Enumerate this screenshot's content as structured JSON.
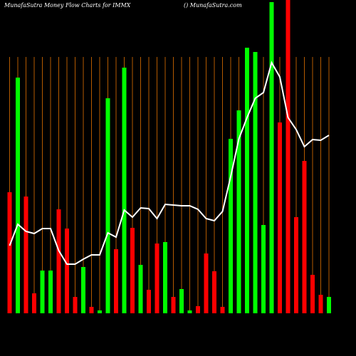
{
  "chart_data": {
    "type": "bar-line",
    "title": "MunafaSutra  Money Flow  Charts for IMMX",
    "subtitle": "() MunafaSutra.com",
    "ylim": [
      0,
      440
    ],
    "grid": true,
    "grid_color": "#b35a00",
    "bars": {
      "values": [
        170,
        331,
        164,
        28,
        60,
        60,
        146,
        119,
        23,
        65,
        9,
        4,
        302,
        90,
        345,
        120,
        68,
        33,
        98,
        100,
        23,
        34,
        4,
        10,
        84,
        59,
        9,
        245,
        285,
        373,
        367,
        124,
        437,
        268,
        440,
        135,
        214,
        54,
        26,
        23
      ],
      "colors": [
        "#ff0000",
        "#00ff00",
        "#ff0000",
        "#ff0000",
        "#00ff00",
        "#00ff00",
        "#ff0000",
        "#ff0000",
        "#ff0000",
        "#00ff00",
        "#ff0000",
        "#00ff00",
        "#00ff00",
        "#ff0000",
        "#00ff00",
        "#ff0000",
        "#00ff00",
        "#ff0000",
        "#ff0000",
        "#00ff00",
        "#ff0000",
        "#00ff00",
        "#00ff00",
        "#ff0000",
        "#ff0000",
        "#ff0000",
        "#ff0000",
        "#00ff00",
        "#00ff00",
        "#00ff00",
        "#00ff00",
        "#00ff00",
        "#00ff00",
        "#ff0000",
        "#ff0000",
        "#ff0000",
        "#ff0000",
        "#ff0000",
        "#ff0000",
        "#00ff00"
      ]
    },
    "line": {
      "color": "#ffffff",
      "values": [
        95,
        125,
        115,
        112,
        119,
        119,
        88,
        69,
        69,
        76,
        82,
        82,
        113,
        107,
        145,
        135,
        148,
        147,
        133,
        153,
        152,
        151,
        151,
        146,
        133,
        130,
        143,
        192,
        245,
        275,
        302,
        310,
        352,
        332,
        275,
        258,
        234,
        244,
        243,
        250
      ]
    }
  }
}
